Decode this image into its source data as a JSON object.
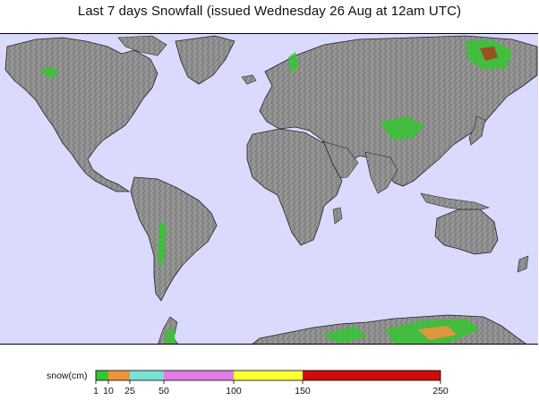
{
  "title": "Last 7 days Snowfall (issued Wednesday 26 Aug at 12am UTC)",
  "map": {
    "ocean_color": "#d9dafd",
    "land_color": "#8c8c8c",
    "snow_regions": [
      "Alaska",
      "Norway",
      "Tibetan Plateau",
      "Eastern Siberia",
      "Andes",
      "Antarctica"
    ]
  },
  "legend": {
    "label": "snow(cm)",
    "ticks": [
      "1",
      "10",
      "25",
      "50",
      "100",
      "150",
      "250"
    ],
    "bins": [
      {
        "from": 1,
        "to": 10,
        "color": "#36c431"
      },
      {
        "from": 10,
        "to": 25,
        "color": "#f0923c"
      },
      {
        "from": 25,
        "to": 50,
        "color": "#78e2d4"
      },
      {
        "from": 50,
        "to": 100,
        "color": "#e07de6"
      },
      {
        "from": 100,
        "to": 150,
        "color": "#ffff33"
      },
      {
        "from": 150,
        "to": 250,
        "color": "#d10b0b"
      }
    ]
  }
}
